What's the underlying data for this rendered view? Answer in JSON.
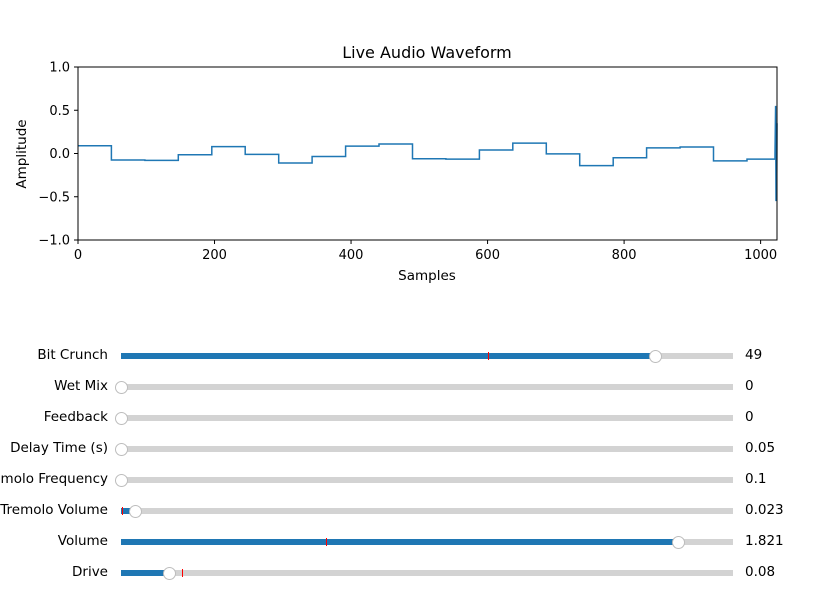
{
  "chart_data": {
    "type": "line",
    "title": "Live Audio Waveform",
    "xlabel": "Samples",
    "ylabel": "Amplitude",
    "xlim": [
      0,
      1024
    ],
    "ylim": [
      -1.0,
      1.0
    ],
    "xticks": [
      "0",
      "200",
      "400",
      "600",
      "800",
      "1000"
    ],
    "yticks": [
      "1.0",
      "0.5",
      "0.0",
      "−0.5",
      "−1.0"
    ],
    "grid": false,
    "series": [
      {
        "color": "#1f77b4",
        "steps": [
          [
            0,
            0.09
          ],
          [
            49,
            -0.075
          ],
          [
            98,
            -0.08
          ],
          [
            147,
            -0.015
          ],
          [
            196,
            0.08
          ],
          [
            245,
            -0.01
          ],
          [
            294,
            -0.11
          ],
          [
            343,
            -0.035
          ],
          [
            392,
            0.085
          ],
          [
            441,
            0.11
          ],
          [
            490,
            -0.06
          ],
          [
            539,
            -0.065
          ],
          [
            588,
            0.04
          ],
          [
            637,
            0.12
          ],
          [
            686,
            -0.005
          ],
          [
            735,
            -0.14
          ],
          [
            784,
            -0.05
          ],
          [
            833,
            0.065
          ],
          [
            882,
            0.075
          ],
          [
            931,
            -0.085
          ],
          [
            980,
            -0.065
          ]
        ],
        "tail": [
          [
            1021,
            0.0
          ],
          [
            1022,
            0.55
          ],
          [
            1022.5,
            -0.55
          ],
          [
            1023,
            0.3
          ],
          [
            1023.5,
            -0.35
          ],
          [
            1024,
            0.35
          ]
        ]
      }
    ]
  },
  "sliders": [
    {
      "label": "Bit Crunch",
      "value_text": "49",
      "min": 1,
      "max": 56,
      "value": 49,
      "init": 34,
      "accent": "#1f77b4"
    },
    {
      "label": "Wet Mix",
      "value_text": "0",
      "min": 0,
      "max": 1,
      "value": 0,
      "init": 0,
      "accent": "#1f77b4"
    },
    {
      "label": "Feedback",
      "value_text": "0",
      "min": 0,
      "max": 1,
      "value": 0,
      "init": 0,
      "accent": "#1f77b4"
    },
    {
      "label": "Delay Time (s)",
      "value_text": "0.05",
      "min": 0.05,
      "max": 1,
      "value": 0.05,
      "init": 0.05,
      "accent": "#1f77b4"
    },
    {
      "label": "Tremolo Frequency",
      "value_text": "0.1",
      "min": 0.1,
      "max": 20,
      "value": 0.1,
      "init": 0.1,
      "accent": "#1f77b4"
    },
    {
      "label": "Tremolo Volume",
      "value_text": "0.023",
      "min": 0,
      "max": 1,
      "value": 0.023,
      "init": 0.003,
      "accent": "#1f77b4"
    },
    {
      "label": "Volume",
      "value_text": "1.821",
      "min": 0,
      "max": 2,
      "value": 1.821,
      "init": 0.67,
      "accent": "#1f77b4"
    },
    {
      "label": "Drive",
      "value_text": "0.08",
      "min": 0,
      "max": 1,
      "value": 0.08,
      "init": 0.1,
      "accent": "#1f77b4"
    }
  ]
}
